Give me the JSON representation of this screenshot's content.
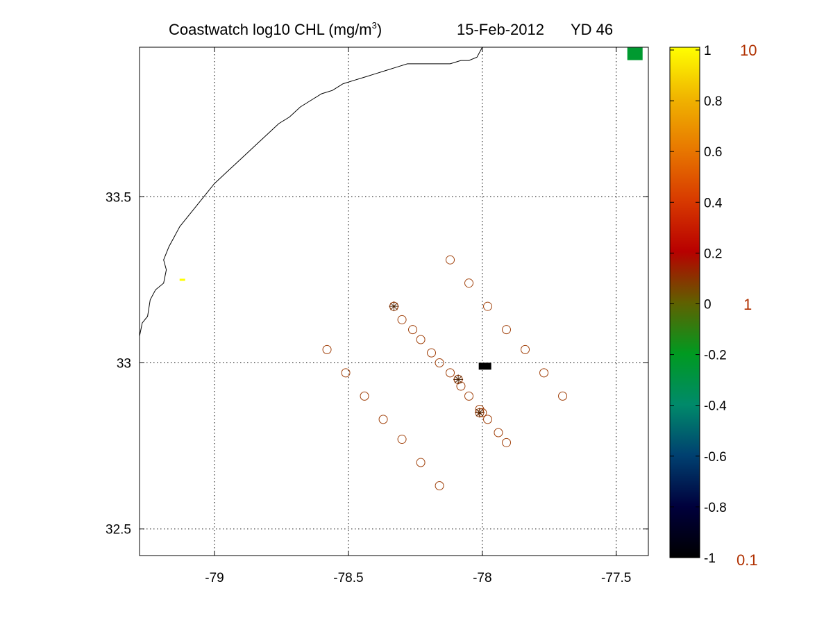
{
  "title": {
    "main": "Coastwatch  log10  CHL (mg/m",
    "superscript": "3",
    "close": ")",
    "date": "15-Feb-2012",
    "yearday": "YD 46"
  },
  "colorbar": {
    "tick_labels": [
      "1",
      "0.8",
      "0.6",
      "0.4",
      "0.2",
      "0",
      "-0.2",
      "-0.4",
      "-0.6",
      "-0.8",
      "-1"
    ],
    "chl_labels": [
      "10",
      "1",
      "0.1"
    ],
    "colors": {
      "stops": [
        "#000000",
        "#00003c",
        "#004070",
        "#008a6a",
        "#009a20",
        "#606000",
        "#b80000",
        "#d83a00",
        "#e87800",
        "#f0b400",
        "#ffff00"
      ]
    }
  },
  "chart_data": {
    "type": "scatter",
    "title": "Coastwatch log10 CHL (mg/m3) 15-Feb-2012 YD 46",
    "xlim": [
      -79.28,
      -77.38
    ],
    "ylim": [
      32.42,
      33.95
    ],
    "x_ticks": [
      -79,
      -78.5,
      -78,
      -77.5
    ],
    "y_ticks": [
      33.5,
      33,
      32.5
    ],
    "x_tick_labels": [
      "-79",
      "-78.5",
      "-78",
      "-77.5"
    ],
    "y_tick_labels": [
      "33.5",
      "33",
      "32.5"
    ],
    "grid": true,
    "stations": {
      "marker": "circle",
      "color": "#a0400a",
      "x": [
        -78.12,
        -78.05,
        -77.98,
        -77.91,
        -77.84,
        -77.77,
        -77.7,
        -78.33,
        -78.3,
        -78.26,
        -78.23,
        -78.19,
        -78.16,
        -78.12,
        -78.09,
        -78.08,
        -78.05,
        -78.01,
        -78.0,
        -77.98,
        -77.94,
        -77.91,
        -78.58,
        -78.51,
        -78.44,
        -78.37,
        -78.3,
        -78.23,
        -78.16
      ],
      "y": [
        33.31,
        33.24,
        33.17,
        33.1,
        33.04,
        32.97,
        32.9,
        33.17,
        33.13,
        33.1,
        33.07,
        33.03,
        33.0,
        32.97,
        32.95,
        32.93,
        32.9,
        32.86,
        32.85,
        32.83,
        32.79,
        32.76,
        33.04,
        32.97,
        32.9,
        32.83,
        32.77,
        32.7,
        32.63
      ]
    },
    "highlighted_stations": {
      "marker": "circle-star",
      "x": [
        -78.33,
        -78.09,
        -78.01
      ],
      "y": [
        33.17,
        32.95,
        32.85
      ]
    },
    "chl_pixels": [
      {
        "x": -77.99,
        "y": 32.99,
        "log10_chl": -1,
        "color": "#000000"
      },
      {
        "x": -79.12,
        "y": 33.25,
        "log10_chl": 1,
        "color": "#ffff00"
      },
      {
        "x": -77.43,
        "y": 33.93,
        "log10_chl": -0.2,
        "color": "#009a30"
      }
    ],
    "colorbar_range": [
      -1,
      1
    ],
    "coastline": [
      [
        -79.28,
        33.08
      ],
      [
        -79.27,
        33.12
      ],
      [
        -79.25,
        33.14
      ],
      [
        -79.24,
        33.19
      ],
      [
        -79.22,
        33.22
      ],
      [
        -79.19,
        33.24
      ],
      [
        -79.18,
        33.28
      ],
      [
        -79.19,
        33.31
      ],
      [
        -79.17,
        33.35
      ],
      [
        -79.15,
        33.38
      ],
      [
        -79.13,
        33.41
      ],
      [
        -79.11,
        33.43
      ],
      [
        -79.08,
        33.46
      ],
      [
        -79.04,
        33.5
      ],
      [
        -79.0,
        33.54
      ],
      [
        -78.96,
        33.57
      ],
      [
        -78.92,
        33.6
      ],
      [
        -78.88,
        33.63
      ],
      [
        -78.84,
        33.66
      ],
      [
        -78.8,
        33.69
      ],
      [
        -78.76,
        33.72
      ],
      [
        -78.72,
        33.74
      ],
      [
        -78.68,
        33.77
      ],
      [
        -78.64,
        33.79
      ],
      [
        -78.6,
        33.81
      ],
      [
        -78.56,
        33.82
      ],
      [
        -78.52,
        33.84
      ],
      [
        -78.48,
        33.85
      ],
      [
        -78.44,
        33.86
      ],
      [
        -78.4,
        33.87
      ],
      [
        -78.36,
        33.88
      ],
      [
        -78.32,
        33.89
      ],
      [
        -78.28,
        33.9
      ],
      [
        -78.24,
        33.9
      ],
      [
        -78.2,
        33.9
      ],
      [
        -78.16,
        33.9
      ],
      [
        -78.12,
        33.9
      ],
      [
        -78.08,
        33.91
      ],
      [
        -78.05,
        33.91
      ],
      [
        -78.02,
        33.92
      ],
      [
        -78.0,
        33.95
      ]
    ]
  }
}
